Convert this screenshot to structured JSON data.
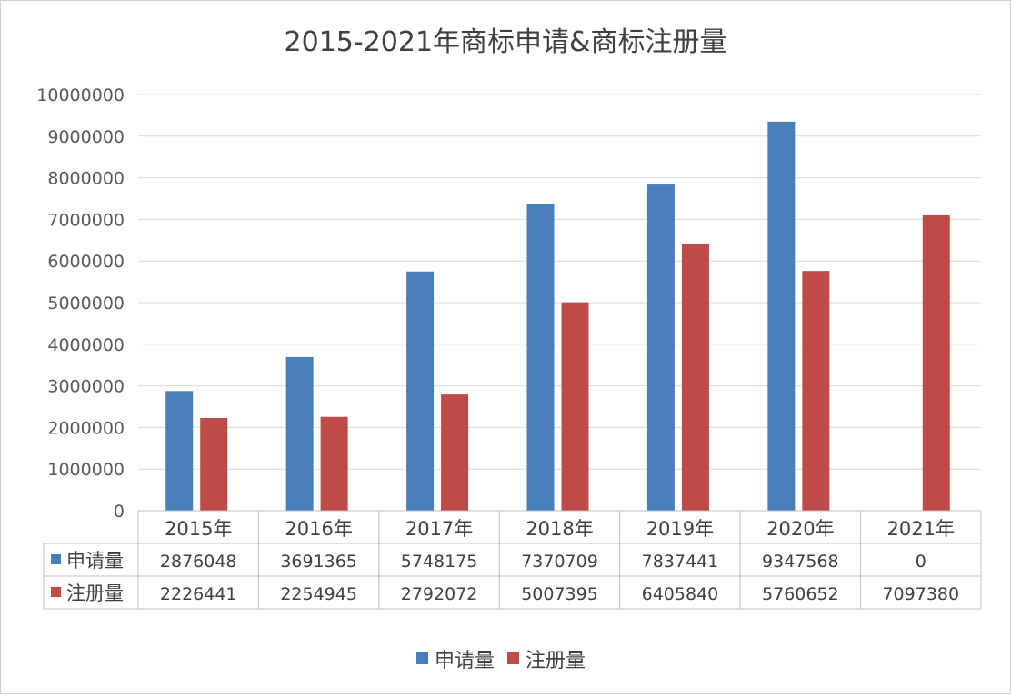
{
  "chart_data": {
    "type": "bar",
    "title": "2015-2021年商标申请&商标注册量",
    "categories": [
      "2015年",
      "2016年",
      "2017年",
      "2018年",
      "2019年",
      "2020年",
      "2021年"
    ],
    "series": [
      {
        "name": "申请量",
        "color": "#4a7ebb",
        "values": [
          2876048,
          3691365,
          5748175,
          7370709,
          7837441,
          9347568,
          0
        ],
        "value_labels": [
          "2876048",
          "3691365",
          "5748175",
          "7370709",
          "7837441",
          "9347568",
          "0"
        ]
      },
      {
        "name": "注册量",
        "color": "#be4b48",
        "values": [
          2226441,
          2254945,
          2792072,
          5007395,
          6405840,
          5760652,
          7097380
        ],
        "value_labels": [
          "2226441",
          "2254945",
          "2792072",
          "5007395",
          "6405840",
          "5760652",
          "7097380"
        ]
      }
    ],
    "ylim": [
      0,
      10000000
    ],
    "yticks": [
      0,
      1000000,
      2000000,
      3000000,
      4000000,
      5000000,
      6000000,
      7000000,
      8000000,
      9000000,
      10000000
    ],
    "ytick_labels": [
      "0",
      "1000000",
      "2000000",
      "3000000",
      "4000000",
      "5000000",
      "6000000",
      "7000000",
      "8000000",
      "9000000",
      "10000000"
    ],
    "grid": true,
    "legend_position": "bottom",
    "data_table": true
  }
}
